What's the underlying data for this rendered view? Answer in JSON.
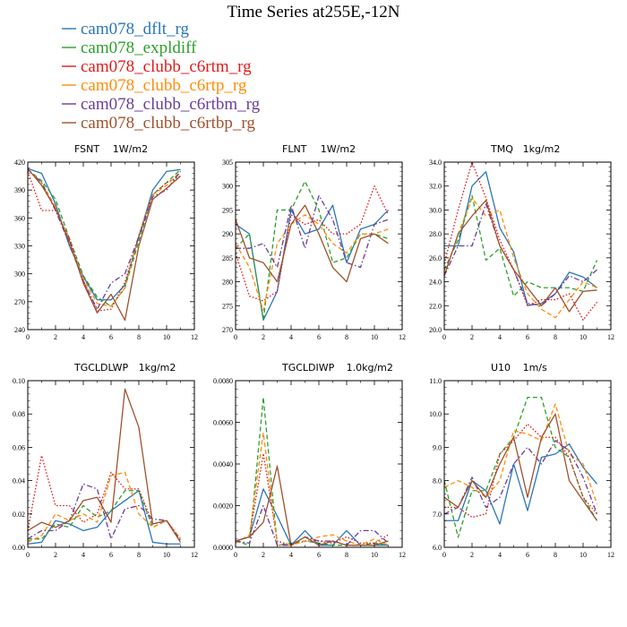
{
  "figure": {
    "title": "Time Series at255E,-12N"
  },
  "chart_data": [
    {
      "type": "line",
      "title": "FSNT",
      "units": "1W/m2",
      "x": [
        0,
        1,
        2,
        3,
        4,
        5,
        6,
        7,
        8,
        9,
        10,
        11
      ],
      "xlim": [
        0,
        12
      ],
      "xticks": [
        0,
        2,
        4,
        6,
        8,
        10,
        12
      ],
      "ylim": [
        240,
        420
      ],
      "yticks": [
        "240",
        "270",
        "300",
        "330",
        "360",
        "390",
        "420"
      ],
      "series": [
        {
          "name": "cam078_dflt_rg",
          "values": [
            413,
            408,
            375,
            330,
            297,
            272,
            272,
            288,
            340,
            390,
            410,
            412
          ]
        },
        {
          "name": "cam078_expldiff",
          "values": [
            412,
            400,
            380,
            338,
            298,
            275,
            265,
            285,
            335,
            385,
            398,
            412
          ]
        },
        {
          "name": "cam078_clubb_c6rtm_rg",
          "values": [
            410,
            368,
            368,
            338,
            293,
            260,
            262,
            291,
            340,
            385,
            398,
            405
          ]
        },
        {
          "name": "cam078_clubb_c6rtp_rg",
          "values": [
            412,
            398,
            372,
            332,
            295,
            268,
            265,
            285,
            342,
            385,
            395,
            410
          ]
        },
        {
          "name": "cam078_clubb_c6rtbm_rg",
          "values": [
            412,
            398,
            368,
            332,
            292,
            262,
            290,
            300,
            340,
            383,
            390,
            410
          ]
        },
        {
          "name": "cam078_clubb_c6rtbp_rg",
          "values": [
            413,
            395,
            370,
            335,
            290,
            258,
            278,
            250,
            330,
            380,
            392,
            405
          ]
        }
      ]
    },
    {
      "type": "line",
      "title": "FLNT",
      "units": "1W/m2",
      "x": [
        0,
        1,
        2,
        3,
        4,
        5,
        6,
        7,
        8,
        9,
        10,
        11
      ],
      "xlim": [
        0,
        12
      ],
      "xticks": [
        0,
        2,
        4,
        6,
        8,
        10,
        12
      ],
      "ylim": [
        270,
        305
      ],
      "yticks": [
        "270",
        "275",
        "280",
        "285",
        "290",
        "295",
        "300",
        "305"
      ],
      "series": [
        {
          "name": "cam078_dflt_rg",
          "values": [
            292,
            290,
            272,
            278,
            295,
            290,
            291,
            296,
            284,
            291,
            292,
            295
          ]
        },
        {
          "name": "cam078_expldiff",
          "values": [
            287,
            290,
            272,
            295,
            295,
            301,
            295,
            284,
            285,
            290,
            290,
            289
          ]
        },
        {
          "name": "cam078_clubb_c6rtm_rg",
          "values": [
            286,
            277,
            276,
            278,
            294,
            292,
            293,
            290,
            290,
            292,
            300,
            294
          ]
        },
        {
          "name": "cam078_clubb_c6rtp_rg",
          "values": [
            288,
            283,
            274,
            288,
            292,
            294,
            292,
            288,
            286,
            290,
            290,
            291
          ]
        },
        {
          "name": "cam078_clubb_c6rtbm_rg",
          "values": [
            287,
            287,
            288,
            283,
            296,
            287,
            298,
            293,
            284,
            283,
            292,
            293
          ]
        },
        {
          "name": "cam078_clubb_c6rtbp_rg",
          "values": [
            293,
            285,
            284,
            280,
            292,
            296,
            290,
            283,
            280,
            289,
            290,
            288
          ]
        }
      ]
    },
    {
      "type": "line",
      "title": "TMQ",
      "units": "1kg/m2",
      "x": [
        0,
        1,
        2,
        3,
        4,
        5,
        6,
        7,
        8,
        9,
        10,
        11
      ],
      "xlim": [
        0,
        12
      ],
      "xticks": [
        0,
        2,
        4,
        6,
        8,
        10,
        12
      ],
      "ylim": [
        20.0,
        34.0
      ],
      "yticks": [
        "20.0",
        "22.0",
        "24.0",
        "26.0",
        "28.0",
        "30.0",
        "32.0",
        "34.0"
      ],
      "series": [
        {
          "name": "cam078_dflt_rg",
          "values": [
            27.0,
            27.0,
            32.0,
            33.2,
            28.5,
            26.5,
            22.0,
            22.2,
            23.0,
            24.8,
            24.4,
            23.5
          ]
        },
        {
          "name": "cam078_expldiff",
          "values": [
            25.0,
            27.5,
            31.2,
            25.8,
            26.8,
            22.8,
            24.0,
            23.5,
            23.5,
            23.5,
            23.2,
            25.8
          ]
        },
        {
          "name": "cam078_clubb_c6rtm_rg",
          "values": [
            25.5,
            30.0,
            34.0,
            31.0,
            27.5,
            25.0,
            22.0,
            22.5,
            22.5,
            23.0,
            20.8,
            22.3
          ]
        },
        {
          "name": "cam078_clubb_c6rtp_rg",
          "values": [
            24.5,
            28.0,
            31.0,
            29.5,
            30.0,
            26.0,
            23.0,
            21.7,
            21.0,
            22.5,
            24.0,
            23.5
          ]
        },
        {
          "name": "cam078_clubb_c6rtbm_rg",
          "values": [
            24.5,
            27.0,
            27.0,
            30.5,
            27.0,
            25.0,
            22.2,
            22.0,
            23.0,
            24.5,
            24.0,
            25.0
          ]
        },
        {
          "name": "cam078_clubb_c6rtbp_rg",
          "values": [
            24.5,
            28.0,
            29.5,
            30.8,
            27.0,
            25.0,
            23.5,
            22.0,
            23.5,
            21.5,
            23.2,
            23.3
          ]
        }
      ]
    },
    {
      "type": "line",
      "title": "TGCLDLWP",
      "units": "1kg/m2",
      "x": [
        0,
        1,
        2,
        3,
        4,
        5,
        6,
        7,
        8,
        9,
        10,
        11
      ],
      "xlim": [
        0,
        12
      ],
      "xticks": [
        0,
        2,
        4,
        6,
        8,
        10,
        12
      ],
      "ylim": [
        0.0,
        0.1
      ],
      "yticks": [
        "0.00",
        "0.02",
        "0.04",
        "0.06",
        "0.08",
        "0.10"
      ],
      "series": [
        {
          "name": "cam078_dflt_rg",
          "values": [
            0.002,
            0.003,
            0.016,
            0.014,
            0.01,
            0.012,
            0.022,
            0.028,
            0.034,
            0.003,
            0.002,
            0.002
          ]
        },
        {
          "name": "cam078_expldiff",
          "values": [
            0.005,
            0.005,
            0.014,
            0.012,
            0.025,
            0.018,
            0.022,
            0.034,
            0.034,
            0.012,
            0.016,
            0.005
          ]
        },
        {
          "name": "cam078_clubb_c6rtm_rg",
          "values": [
            0.01,
            0.055,
            0.025,
            0.025,
            0.015,
            0.02,
            0.045,
            0.035,
            0.035,
            0.014,
            0.016,
            0.005
          ]
        },
        {
          "name": "cam078_clubb_c6rtp_rg",
          "values": [
            0.003,
            0.007,
            0.02,
            0.016,
            0.02,
            0.015,
            0.043,
            0.045,
            0.02,
            0.012,
            0.016,
            0.005
          ]
        },
        {
          "name": "cam078_clubb_c6rtbm_rg",
          "values": [
            0.005,
            0.01,
            0.01,
            0.016,
            0.038,
            0.035,
            0.005,
            0.023,
            0.025,
            0.017,
            0.016,
            0.004
          ]
        },
        {
          "name": "cam078_clubb_c6rtbp_rg",
          "values": [
            0.01,
            0.015,
            0.012,
            0.016,
            0.028,
            0.03,
            0.015,
            0.095,
            0.072,
            0.014,
            0.016,
            0.003
          ]
        }
      ]
    },
    {
      "type": "line",
      "title": "TGCLDIWP",
      "units": "1.0kg/m2",
      "x": [
        0,
        1,
        2,
        3,
        4,
        5,
        6,
        7,
        8,
        9,
        10,
        11
      ],
      "xlim": [
        0,
        12
      ],
      "xticks": [
        0,
        2,
        4,
        6,
        8,
        10,
        12
      ],
      "ylim": [
        0.0,
        0.008
      ],
      "yticks": [
        "0.0000",
        "0.0020",
        "0.0040",
        "0.0060",
        "0.0080"
      ],
      "series": [
        {
          "name": "cam078_dflt_rg",
          "values": [
            0.0003,
            0.0005,
            0.0028,
            0.0015,
            0.0001,
            0.0008,
            0.0001,
            0.0001,
            0.0008,
            0.0001,
            0.0001,
            0.0001
          ]
        },
        {
          "name": "cam078_expldiff",
          "values": [
            0.0003,
            0.0001,
            0.0072,
            0.0001,
            0.0002,
            0.0003,
            0.0002,
            0.0001,
            0.0001,
            0.0001,
            0.0002,
            0.0001
          ]
        },
        {
          "name": "cam078_clubb_c6rtm_rg",
          "values": [
            0.0003,
            0.0005,
            0.0045,
            0.0003,
            0.0001,
            0.0003,
            0.0003,
            0.0002,
            0.0005,
            0.0002,
            0.0002,
            0.0006
          ]
        },
        {
          "name": "cam078_clubb_c6rtp_rg",
          "values": [
            0.0002,
            0.0006,
            0.0055,
            0.0001,
            0.0001,
            0.0003,
            0.0005,
            0.0006,
            0.0003,
            0.0001,
            0.0004,
            0.0001
          ]
        },
        {
          "name": "cam078_clubb_c6rtbm_rg",
          "values": [
            0.0003,
            0.0002,
            0.002,
            0.0001,
            0.0001,
            0.0005,
            0.0003,
            0.0003,
            0.0001,
            0.0008,
            0.0008,
            0.0002
          ]
        },
        {
          "name": "cam078_clubb_c6rtbp_rg",
          "values": [
            0.0003,
            0.0005,
            0.0012,
            0.0039,
            0.0001,
            0.0005,
            0.0001,
            0.0003,
            0.0001,
            0.0001,
            0.0001,
            0.0003
          ]
        }
      ]
    },
    {
      "type": "line",
      "title": "U10",
      "units": "1m/s",
      "x": [
        0,
        1,
        2,
        3,
        4,
        5,
        6,
        7,
        8,
        9,
        10,
        11
      ],
      "xlim": [
        0,
        12
      ],
      "xticks": [
        0,
        2,
        4,
        6,
        8,
        10,
        12
      ],
      "ylim": [
        6.0,
        11.0
      ],
      "yticks": [
        "6.0",
        "7.0",
        "8.0",
        "9.0",
        "10.0",
        "11.0"
      ],
      "series": [
        {
          "name": "cam078_dflt_rg",
          "values": [
            6.8,
            6.8,
            8.0,
            7.7,
            6.7,
            8.5,
            7.1,
            8.7,
            8.8,
            9.1,
            8.4,
            7.9
          ]
        },
        {
          "name": "cam078_expldiff",
          "values": [
            8.0,
            6.3,
            7.7,
            7.7,
            8.8,
            9.3,
            10.5,
            10.5,
            9.0,
            8.7,
            7.5,
            6.8
          ]
        },
        {
          "name": "cam078_clubb_c6rtm_rg",
          "values": [
            7.2,
            7.2,
            6.9,
            7.0,
            8.8,
            9.2,
            9.7,
            9.3,
            9.3,
            8.7,
            7.5,
            7.0
          ]
        },
        {
          "name": "cam078_clubb_c6rtp_rg",
          "values": [
            7.8,
            8.0,
            7.8,
            7.5,
            8.0,
            9.5,
            9.4,
            9.2,
            10.3,
            8.8,
            8.5,
            7.3
          ]
        },
        {
          "name": "cam078_clubb_c6rtbm_rg",
          "values": [
            7.0,
            7.2,
            8.1,
            7.2,
            7.5,
            8.5,
            9.0,
            8.5,
            9.2,
            8.9,
            8.1,
            7.0
          ]
        },
        {
          "name": "cam078_clubb_c6rtbp_rg",
          "values": [
            7.5,
            7.2,
            8.0,
            7.5,
            8.5,
            9.3,
            7.5,
            9.3,
            10.0,
            8.0,
            7.4,
            6.8
          ]
        }
      ]
    }
  ],
  "legend": [
    {
      "label": "cam078_dflt_rg",
      "color": "#2b76b9",
      "dash": "solid"
    },
    {
      "label": "cam078_expldiff",
      "color": "#2ca02c",
      "dash": "dashed"
    },
    {
      "label": "cam078_clubb_c6rtm_rg",
      "color": "#e01b1b",
      "dash": "dotted"
    },
    {
      "label": "cam078_clubb_c6rtp_rg",
      "color": "#ff8c0a",
      "dash": "dashed"
    },
    {
      "label": "cam078_clubb_c6rtbm_rg",
      "color": "#6a3d9a",
      "dash": "dashdot"
    },
    {
      "label": "cam078_clubb_c6rtbp_rg",
      "color": "#a0522d",
      "dash": "solid"
    }
  ]
}
